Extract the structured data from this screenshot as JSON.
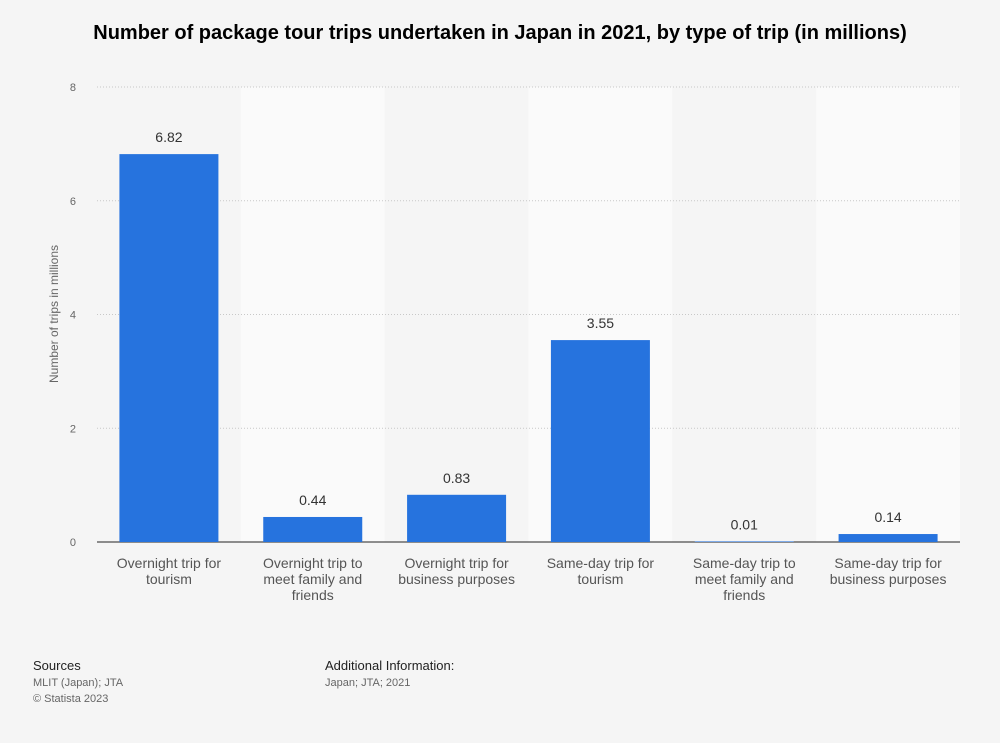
{
  "chart_data": {
    "type": "bar",
    "title": "Number of package tour trips undertaken in Japan in 2021, by type of trip (in millions)",
    "xlabel": "",
    "ylabel": "Number of trips in millions",
    "ylim": [
      0,
      8
    ],
    "yticks": [
      0,
      2,
      4,
      6,
      8
    ],
    "categories": [
      [
        "Overnight trip for",
        "tourism"
      ],
      [
        "Overnight trip to",
        "meet family and",
        "friends"
      ],
      [
        "Overnight trip for",
        "business purposes"
      ],
      [
        "Same-day trip for",
        "tourism"
      ],
      [
        "Same-day trip to",
        "meet family and",
        "friends"
      ],
      [
        "Same-day trip for",
        "business purposes"
      ]
    ],
    "values": [
      6.82,
      0.44,
      0.83,
      3.55,
      0.01,
      0.14
    ],
    "value_labels": [
      "6.82",
      "0.44",
      "0.83",
      "3.55",
      "0.01",
      "0.14"
    ],
    "bar_color": "#2673de"
  },
  "footer": {
    "sources_heading": "Sources",
    "sources_line1": "MLIT (Japan); JTA",
    "sources_line2": "© Statista 2023",
    "additional_heading": "Additional Information:",
    "additional_text": "Japan; JTA; 2021"
  }
}
